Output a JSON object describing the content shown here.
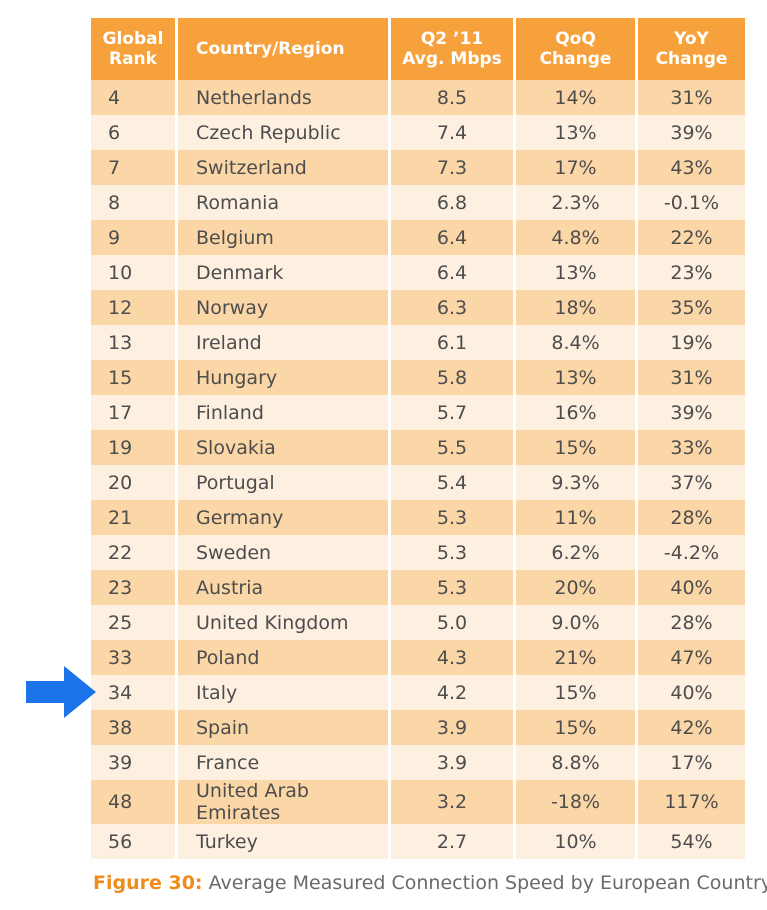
{
  "chart_data": {
    "type": "table",
    "columns": [
      "Global Rank",
      "Country/Region",
      "Q2 '11 Avg. Mbps",
      "QoQ Change",
      "YoY Change"
    ],
    "header_lines": [
      [
        "Global",
        "Rank"
      ],
      [
        "Country/Region"
      ],
      [
        "Q2 ’11",
        "Avg. Mbps"
      ],
      [
        "QoQ",
        "Change"
      ],
      [
        "YoY",
        "Change"
      ]
    ],
    "rows": [
      [
        "4",
        "Netherlands",
        "8.5",
        "14%",
        "31%"
      ],
      [
        "6",
        "Czech Republic",
        "7.4",
        "13%",
        "39%"
      ],
      [
        "7",
        "Switzerland",
        "7.3",
        "17%",
        "43%"
      ],
      [
        "8",
        "Romania",
        "6.8",
        "2.3%",
        "-0.1%"
      ],
      [
        "9",
        "Belgium",
        "6.4",
        "4.8%",
        "22%"
      ],
      [
        "10",
        "Denmark",
        "6.4",
        "13%",
        "23%"
      ],
      [
        "12",
        "Norway",
        "6.3",
        "18%",
        "35%"
      ],
      [
        "13",
        "Ireland",
        "6.1",
        "8.4%",
        "19%"
      ],
      [
        "15",
        "Hungary",
        "5.8",
        "13%",
        "31%"
      ],
      [
        "17",
        "Finland",
        "5.7",
        "16%",
        "39%"
      ],
      [
        "19",
        "Slovakia",
        "5.5",
        "15%",
        "33%"
      ],
      [
        "20",
        "Portugal",
        "5.4",
        "9.3%",
        "37%"
      ],
      [
        "21",
        "Germany",
        "5.3",
        "11%",
        "28%"
      ],
      [
        "22",
        "Sweden",
        "5.3",
        "6.2%",
        "-4.2%"
      ],
      [
        "23",
        "Austria",
        "5.3",
        "20%",
        "40%"
      ],
      [
        "25",
        "United Kingdom",
        "5.0",
        "9.0%",
        "28%"
      ],
      [
        "33",
        "Poland",
        "4.3",
        "21%",
        "47%"
      ],
      [
        "34",
        "Italy",
        "4.2",
        "15%",
        "40%"
      ],
      [
        "38",
        "Spain",
        "3.9",
        "15%",
        "42%"
      ],
      [
        "39",
        "France",
        "3.9",
        "8.8%",
        "17%"
      ],
      [
        "48",
        "United Arab Emirates",
        "3.2",
        "-18%",
        "117%"
      ],
      [
        "56",
        "Turkey",
        "2.7",
        "10%",
        "54%"
      ]
    ],
    "highlighted_country": "Italy"
  },
  "caption": {
    "figure_label": "Figure 30:",
    "text": " Average Measured Connection Speed by European Country"
  },
  "colors": {
    "header_bg": "#f6a13c",
    "row_dark": "#fbd7a8",
    "row_light": "#fdf0e1",
    "arrow": "#1a73e8",
    "caption_label": "#f08c1c"
  },
  "icons": {
    "pointer": "arrow-right-icon"
  }
}
